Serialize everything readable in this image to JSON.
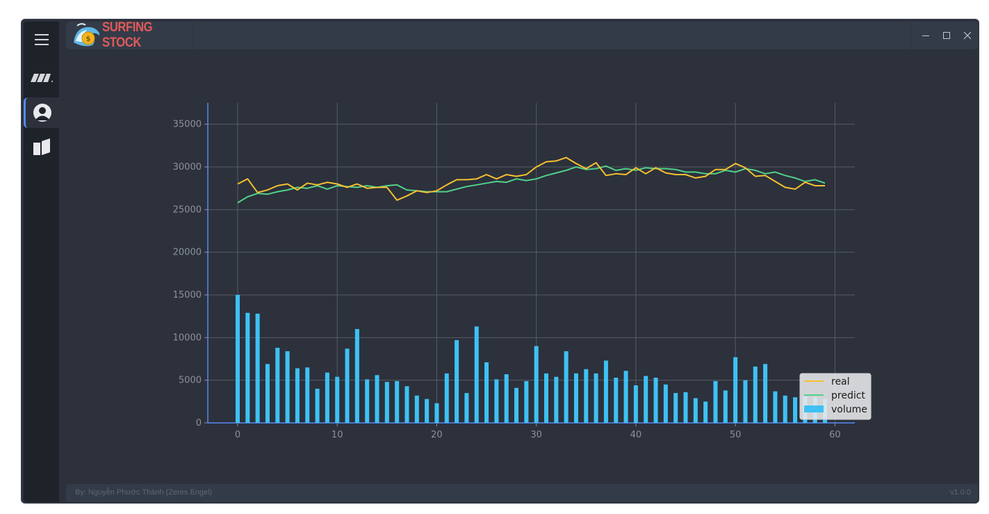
{
  "app": {
    "title": "SURFING STOCK",
    "footer_credit": "By: Nguyễn Phước Thành (Zeres Engel)",
    "version": "v1.0.0"
  },
  "sidebar": {
    "items": [
      {
        "name": "menu",
        "icon": "hamburger-icon"
      },
      {
        "name": "stock",
        "icon": "stock-logo-icon"
      },
      {
        "name": "account",
        "icon": "user-icon",
        "active": true
      },
      {
        "name": "exit",
        "icon": "door-icon"
      }
    ]
  },
  "window_controls": [
    "minimize",
    "maximize",
    "close"
  ],
  "colors": {
    "real": "#f6c02f",
    "predict": "#52d18a",
    "volume": "#3ec1f4",
    "background": "#2c313c",
    "sidebar": "#1e2229",
    "accent": "#568af2"
  },
  "chart_data": {
    "type": "line",
    "xlim": [
      -3,
      62
    ],
    "ylim": [
      0,
      37500
    ],
    "xticks": [
      0,
      10,
      20,
      30,
      40,
      50,
      60
    ],
    "yticks": [
      0,
      5000,
      10000,
      15000,
      20000,
      25000,
      30000,
      35000
    ],
    "grid": true,
    "legend": {
      "position": "lower-right",
      "entries": [
        "real",
        "predict",
        "volume"
      ]
    },
    "series": [
      {
        "name": "real",
        "type": "line",
        "values": [
          28000,
          28600,
          27000,
          27300,
          27800,
          28000,
          27300,
          28100,
          27900,
          28200,
          28000,
          27600,
          28000,
          27500,
          27600,
          27600,
          26100,
          26600,
          27200,
          27000,
          27200,
          27900,
          28500,
          28500,
          28600,
          29100,
          28600,
          29100,
          28900,
          29100,
          30000,
          30600,
          30700,
          31100,
          30400,
          29800,
          30500,
          29000,
          29200,
          29100,
          29900,
          29200,
          29900,
          29300,
          29100,
          29100,
          28700,
          28900,
          29700,
          29700,
          30400,
          29900,
          28900,
          29000,
          28300,
          27600,
          27400,
          28200,
          27800,
          27800
        ]
      },
      {
        "name": "predict",
        "type": "line",
        "values": [
          25800,
          26500,
          26900,
          26800,
          27100,
          27300,
          27600,
          27500,
          27800,
          27400,
          27800,
          27700,
          27600,
          27800,
          27600,
          27800,
          27900,
          27300,
          27200,
          27100,
          27100,
          27100,
          27400,
          27700,
          27900,
          28100,
          28300,
          28200,
          28600,
          28400,
          28600,
          29000,
          29300,
          29600,
          30000,
          29700,
          29800,
          30100,
          29600,
          29800,
          29600,
          29900,
          29800,
          29800,
          29700,
          29400,
          29400,
          29200,
          29200,
          29600,
          29400,
          29800,
          29600,
          29200,
          29400,
          29000,
          28700,
          28300,
          28500,
          28100
        ]
      },
      {
        "name": "volume",
        "type": "bar",
        "values": [
          15000,
          12900,
          12800,
          6900,
          8800,
          8400,
          6400,
          6500,
          4000,
          5900,
          5400,
          8700,
          11000,
          5100,
          5600,
          4800,
          4900,
          4300,
          3200,
          2800,
          2300,
          5800,
          9700,
          3500,
          11300,
          7100,
          5100,
          5700,
          4100,
          4900,
          9000,
          5800,
          5400,
          8400,
          5800,
          6300,
          5800,
          7300,
          5300,
          6100,
          4400,
          5500,
          5300,
          4500,
          3500,
          3600,
          2900,
          2500,
          4900,
          3800,
          7700,
          5000,
          6600,
          6900,
          3700,
          3200,
          3000,
          3100,
          3000,
          2800
        ]
      }
    ]
  }
}
